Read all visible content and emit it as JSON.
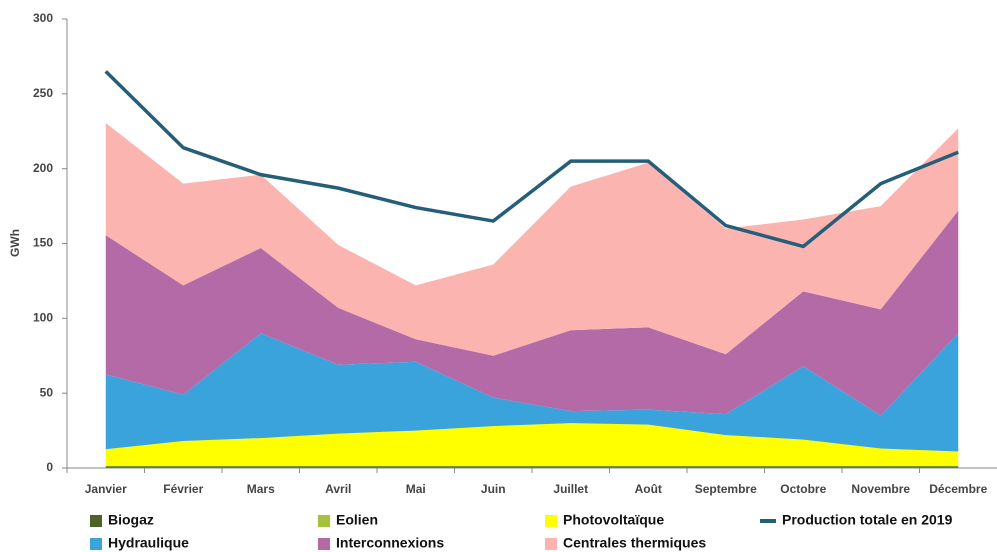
{
  "chart_data": {
    "type": "area",
    "ylabel": "GWh",
    "categories": [
      "Janvier",
      "Février",
      "Mars",
      "Avril",
      "Mai",
      "Juin",
      "Juillet",
      "Août",
      "Septembre",
      "Octobre",
      "Novembre",
      "Décembre"
    ],
    "ylim": [
      0,
      300
    ],
    "yticks": [
      0,
      50,
      100,
      150,
      200,
      250,
      300
    ],
    "grid": false,
    "series": [
      {
        "name": "Biogaz",
        "type": "area",
        "color": "#4f6228",
        "values": [
          1,
          1,
          1,
          1,
          1,
          1,
          1,
          1,
          1,
          1,
          1,
          1
        ]
      },
      {
        "name": "Eolien",
        "type": "area",
        "color": "#a4c23c",
        "values": [
          0.5,
          0.5,
          0.5,
          0.5,
          0.5,
          0.5,
          0.5,
          0.5,
          0.5,
          0.5,
          0.5,
          0.5
        ]
      },
      {
        "name": "Photovoltaïque",
        "type": "area",
        "color": "#ffff00",
        "values": [
          11,
          16.5,
          18.5,
          21.5,
          23.5,
          26.5,
          28.5,
          27.5,
          20.5,
          17.5,
          11.5,
          9.5
        ]
      },
      {
        "name": "Hydraulique",
        "type": "area",
        "color": "#3ba3dc",
        "values": [
          50,
          31,
          70,
          46,
          46,
          19,
          8,
          10,
          14,
          49,
          22,
          79
        ]
      },
      {
        "name": "Interconnexions",
        "type": "area",
        "color": "#b56aa8",
        "values": [
          93,
          73,
          57,
          38,
          15,
          28,
          54,
          55,
          40,
          50,
          71,
          82
        ]
      },
      {
        "name": "Centrales thermiques",
        "type": "area",
        "color": "#fbb4b0",
        "values": [
          75,
          68,
          49,
          42,
          36,
          61,
          96,
          110,
          84,
          48,
          69,
          55
        ]
      },
      {
        "name": "Production totale en 2019",
        "type": "line",
        "color": "#255e79",
        "values": [
          265,
          214,
          196,
          187,
          174,
          165,
          205,
          205,
          162,
          148,
          190,
          211
        ]
      }
    ]
  }
}
